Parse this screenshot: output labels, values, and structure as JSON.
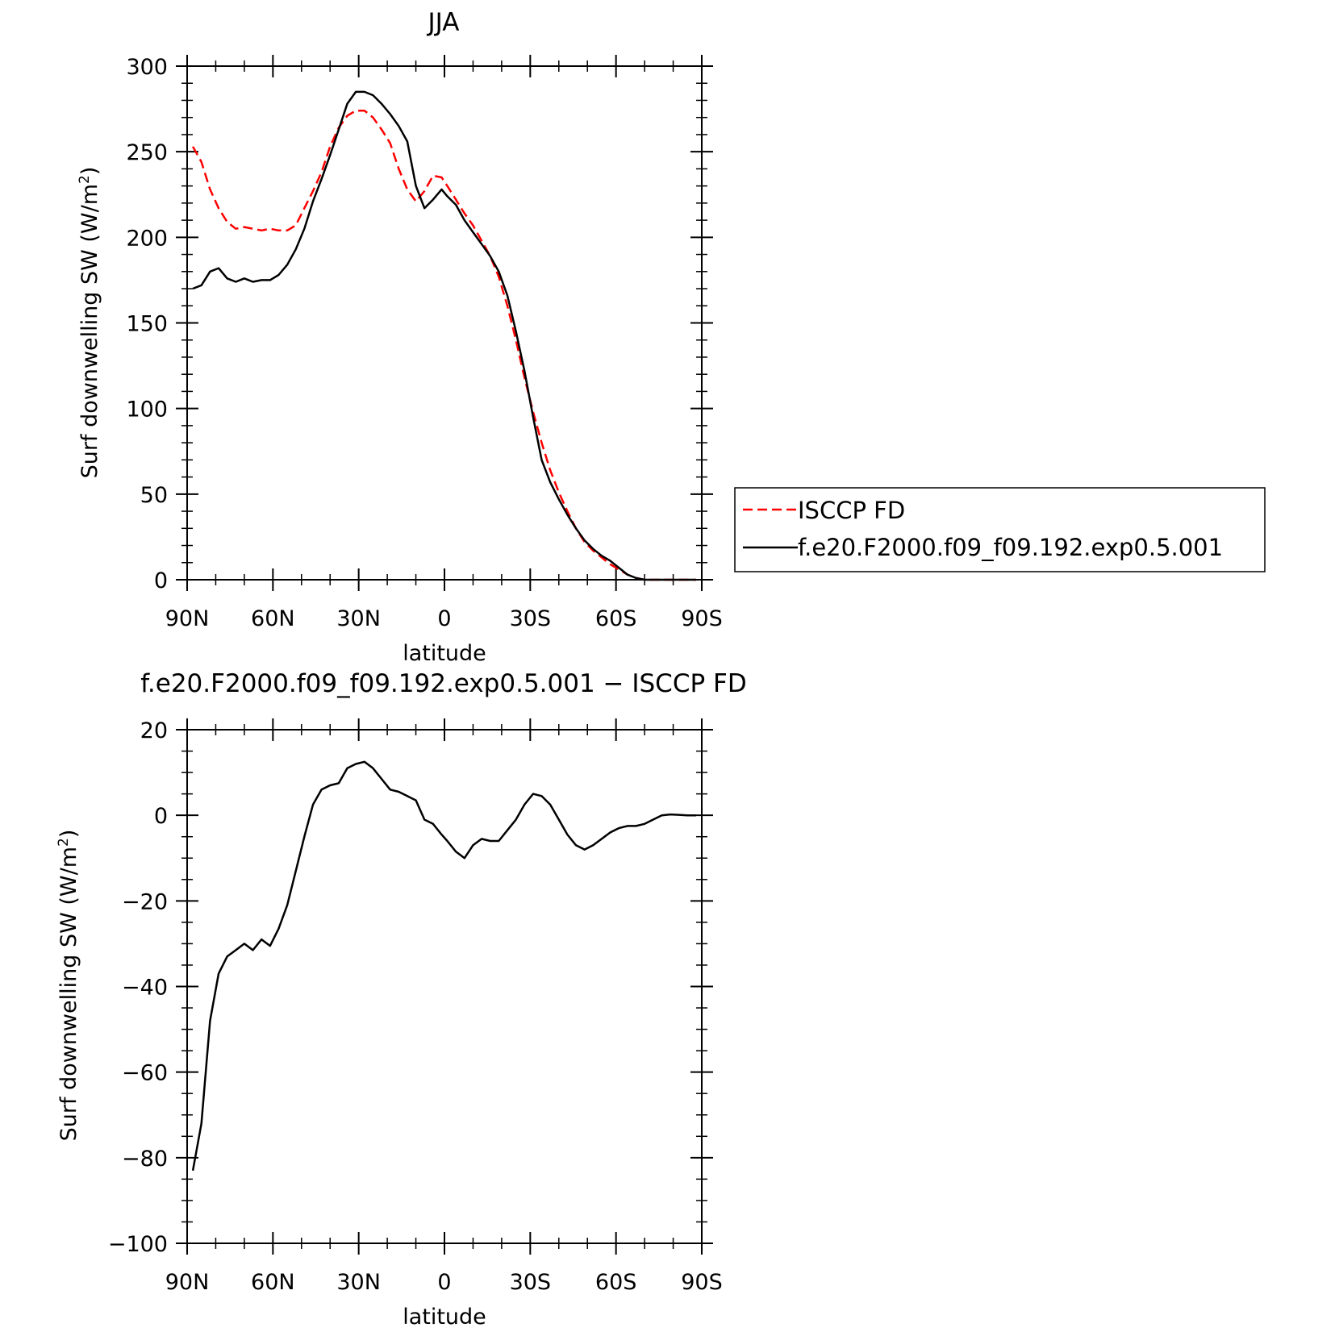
{
  "chart_data": [
    {
      "type": "line",
      "title": "JJA",
      "xlabel": "latitude",
      "ylabel": "Surf downwelling SW (W/m²)",
      "ylabel_main": "Surf downwelling SW (W/m",
      "ylabel_sup": "2",
      "ylabel_close": ")",
      "xlim": [
        90,
        -90
      ],
      "ylim": [
        0,
        300
      ],
      "xticks": [
        90,
        60,
        30,
        0,
        -30,
        -60,
        -90
      ],
      "xtick_labels": [
        "90N",
        "60N",
        "30N",
        "0",
        "30S",
        "60S",
        "90S"
      ],
      "yticks": [
        0,
        50,
        100,
        150,
        200,
        250,
        300
      ],
      "ytick_labels": [
        "0",
        "50",
        "100",
        "150",
        "200",
        "250",
        "300"
      ],
      "legend": {
        "placement": "right",
        "entries": [
          "ISCCP FD",
          "f.e20.F2000.f09_f09.192.exp0.5.001"
        ]
      },
      "series": [
        {
          "name": "ISCCP FD",
          "color": "#ff0000",
          "style": "dashed",
          "x": [
            88,
            85,
            82,
            79,
            76,
            73,
            70,
            67,
            64,
            61,
            58,
            55,
            52,
            49,
            46,
            43,
            40,
            37,
            34,
            31,
            28,
            25,
            22,
            19,
            16,
            13,
            10,
            7,
            4,
            1,
            -1,
            -4,
            -7,
            -10,
            -13,
            -16,
            -19,
            -22,
            -25,
            -28,
            -31,
            -34,
            -37,
            -40,
            -43,
            -46,
            -49,
            -52,
            -55,
            -58,
            -61,
            -64,
            -67,
            -70,
            -73,
            -76,
            -79,
            -82,
            -85,
            -88
          ],
          "y": [
            253,
            244,
            228,
            217,
            209,
            205,
            206,
            205,
            204,
            205,
            204,
            204,
            207,
            217,
            227,
            238,
            253,
            264,
            271,
            274,
            274,
            270,
            263,
            255,
            240,
            228,
            221,
            227,
            236,
            235,
            230,
            222,
            214,
            207,
            198,
            189,
            177,
            160,
            140,
            118,
            98,
            80,
            64,
            51,
            40,
            30,
            22,
            17,
            13,
            9,
            6,
            3,
            1,
            0,
            0,
            0,
            0,
            0,
            0,
            0
          ]
        },
        {
          "name": "f.e20.F2000.f09_f09.192.exp0.5.001",
          "color": "#000000",
          "style": "solid",
          "x": [
            88,
            85,
            82,
            79,
            76,
            73,
            70,
            67,
            64,
            61,
            58,
            55,
            52,
            49,
            46,
            43,
            40,
            37,
            34,
            31,
            28,
            25,
            22,
            19,
            16,
            13,
            10,
            7,
            4,
            1,
            -1,
            -4,
            -7,
            -10,
            -13,
            -16,
            -19,
            -22,
            -25,
            -28,
            -31,
            -34,
            -37,
            -40,
            -43,
            -46,
            -49,
            -52,
            -55,
            -58,
            -61,
            -64,
            -67,
            -70,
            -73,
            -76,
            -79,
            -82,
            -85,
            -88
          ],
          "y": [
            170,
            172,
            180,
            182,
            176,
            174,
            176,
            174,
            175,
            175,
            178,
            184,
            193,
            205,
            221,
            234,
            248,
            263,
            278,
            285,
            285,
            283,
            278,
            272,
            265,
            256,
            230,
            217,
            222,
            228,
            224,
            219,
            210,
            203,
            196,
            189,
            180,
            166,
            145,
            122,
            95,
            70,
            57,
            47,
            38,
            30,
            23,
            18,
            14,
            11,
            7,
            3,
            1,
            0,
            0,
            0,
            0,
            0,
            0,
            0
          ]
        }
      ]
    },
    {
      "type": "line",
      "title": "f.e20.F2000.f09_f09.192.exp0.5.001 − ISCCP FD",
      "xlabel": "latitude",
      "ylabel": "Surf downwelling SW (W/m²)",
      "ylabel_main": "Surf downwelling SW (W/m",
      "ylabel_sup": "2",
      "ylabel_close": ")",
      "xlim": [
        90,
        -90
      ],
      "ylim": [
        -100,
        20
      ],
      "xticks": [
        90,
        60,
        30,
        0,
        -30,
        -60,
        -90
      ],
      "xtick_labels": [
        "90N",
        "60N",
        "30N",
        "0",
        "30S",
        "60S",
        "90S"
      ],
      "yticks": [
        -100,
        -80,
        -60,
        -40,
        -20,
        0,
        20
      ],
      "ytick_labels": [
        "−100",
        "−80",
        "−60",
        "−40",
        "−20",
        "0",
        "20"
      ],
      "series": [
        {
          "color": "#000000",
          "style": "solid",
          "x": [
            88,
            85,
            82,
            79,
            76,
            73,
            70,
            67,
            64,
            61,
            58,
            55,
            52,
            49,
            46,
            43,
            40,
            37,
            34,
            31,
            28,
            25,
            22,
            19,
            16,
            13,
            10,
            7,
            4,
            1,
            -1,
            -4,
            -7,
            -10,
            -13,
            -16,
            -19,
            -22,
            -25,
            -28,
            -31,
            -34,
            -37,
            -40,
            -43,
            -46,
            -49,
            -52,
            -55,
            -58,
            -61,
            -64,
            -67,
            -70,
            -73,
            -76,
            -79,
            -82,
            -85,
            -88
          ],
          "y": [
            -83,
            -72,
            -48,
            -37,
            -33,
            -31.5,
            -30,
            -31.5,
            -29,
            -30.5,
            -26.5,
            -21,
            -13,
            -5,
            2.5,
            6,
            7,
            7.5,
            11,
            12,
            12.5,
            11,
            8.5,
            6,
            5.5,
            4.5,
            3.5,
            -1,
            -2,
            -4.5,
            -6,
            -8.5,
            -10,
            -7,
            -5.5,
            -6,
            -6,
            -3.5,
            -1,
            2.5,
            5,
            4.5,
            2.5,
            -1,
            -4.5,
            -7,
            -8,
            -7,
            -5.5,
            -4,
            -3,
            -2.5,
            -2.5,
            -2,
            -1,
            0,
            0.2,
            0.1,
            0,
            0
          ]
        }
      ]
    }
  ]
}
